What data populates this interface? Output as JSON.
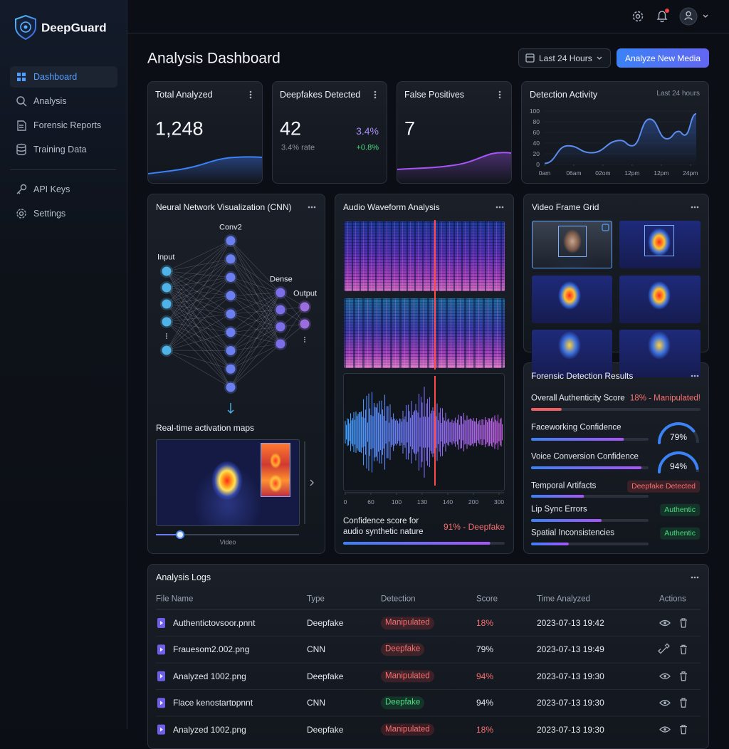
{
  "sidebar": {
    "brand": "DeepGuard",
    "nav": [
      "Dashboard",
      "Analysis",
      "Forensic Reports",
      "Training Data"
    ],
    "nav_secondary": [
      "API Keys",
      "Settings"
    ],
    "active": 0
  },
  "header": {
    "title": "Analysis Dashboard",
    "date_range": "Last 24 Hours",
    "action": "Analyze New Media"
  },
  "stats": [
    {
      "title": "Total Analyzed",
      "value": "1,248"
    },
    {
      "title": "Deepfakes Detected",
      "value": "42",
      "rate": "3.4% rate",
      "percent": "3.4%",
      "change": "+0.8%"
    },
    {
      "title": "False Positives",
      "value": "7"
    }
  ],
  "chart_data": {
    "type": "line",
    "title": "Detection Activity",
    "subtitle": "Last 24 hours",
    "x": [
      0,
      4,
      8,
      13,
      15,
      18,
      21,
      23,
      24,
      26
    ],
    "values": [
      2,
      35,
      22,
      45,
      35,
      85,
      48,
      62,
      55,
      95
    ],
    "xlim": [
      0,
      26
    ],
    "xticks": [
      {
        "value": 0,
        "label": "0am"
      },
      {
        "value": 5,
        "label": "06am"
      },
      {
        "value": 10,
        "label": "02om"
      },
      {
        "value": 15,
        "label": "12pm"
      },
      {
        "value": 20,
        "label": "12pm"
      },
      {
        "value": 25,
        "label": "24pm"
      }
    ],
    "ylim": [
      0,
      100
    ],
    "yticks": [
      0,
      20,
      40,
      60,
      80,
      100
    ],
    "color": "#5b8def"
  },
  "cnn": {
    "title": "Neural Network Visualization (CNN)",
    "layers": [
      "Input",
      "Conv2",
      "Dense",
      "Output"
    ],
    "activation_title": "Real-time activation maps",
    "video_label": "Video"
  },
  "audio": {
    "title": "Audio Waveform Analysis",
    "axis_labels": [
      0,
      60,
      100,
      130,
      140,
      200,
      300
    ],
    "confidence_label": "Confidence score for audio synthetic nature",
    "confidence": 91,
    "confidence_value_label": "91% - Deepfake"
  },
  "video": {
    "title": "Video Frame Grid"
  },
  "forensic": {
    "title": "Forensic Detection Results",
    "items": [
      {
        "label": "Overall Authenticity Score",
        "value": 18,
        "value_label": "18% - Manipulated!",
        "tone": "red"
      },
      {
        "label": "Faceworking Confidence",
        "value": 79,
        "value_label": "79%",
        "gauge": true
      },
      {
        "label": "Voice Conversion Confidence",
        "value": 94,
        "value_label": "94%",
        "gauge": true
      },
      {
        "label": "Temporal Artifacts",
        "value": 45,
        "badge": "Deepfake Detected",
        "tone": "red"
      },
      {
        "label": "Lip Sync Errors",
        "value": 60,
        "badge": "Authentic",
        "tone": "green"
      },
      {
        "label": "Spatial Inconsistencies",
        "value": 32,
        "badge": "Authentic",
        "tone": "green"
      }
    ]
  },
  "logs": {
    "title": "Analysis Logs",
    "columns": [
      "File Name",
      "Type",
      "Detection",
      "Score",
      "Time Analyzed",
      "Actions"
    ],
    "rows": [
      {
        "file": "Authentictovsoor.pnnt",
        "type": "Deepfake",
        "detection": "Manipulated",
        "detection_tone": "red",
        "score": "18%",
        "score_tone": "red",
        "time": "2023-07-13 19:42"
      },
      {
        "file": "Frauesom2.002.png",
        "type": "CNN",
        "detection": "Deepfake",
        "detection_tone": "red",
        "score": "79%",
        "score_tone": "plain",
        "time": "2023-07-13 19:49"
      },
      {
        "file": "Analyzed 1002.png",
        "type": "Deepfake",
        "detection": "Manipulated",
        "detection_tone": "red",
        "score": "94%",
        "score_tone": "red",
        "time": "2023-07-13 19:30"
      },
      {
        "file": "Flace kenostartɒpnnt",
        "type": "CNN",
        "detection": "Deepfake",
        "detection_tone": "green",
        "score": "94%",
        "score_tone": "plain",
        "time": "2023-07-13 19:30"
      },
      {
        "file": "Analyzed 1002.png",
        "type": "Deepfake",
        "detection": "Manipulated",
        "detection_tone": "red",
        "score": "18%",
        "score_tone": "red",
        "time": "2023-07-13 19:30"
      }
    ]
  }
}
